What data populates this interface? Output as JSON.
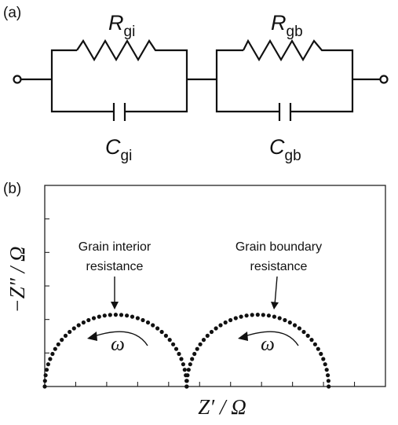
{
  "panel_a": {
    "label": "(a)",
    "r_gi": {
      "main": "R",
      "sub": "gi"
    },
    "r_gb": {
      "main": "R",
      "sub": "gb"
    },
    "c_gi": {
      "main": "C",
      "sub": "gi"
    },
    "c_gb": {
      "main": "C",
      "sub": "gb"
    }
  },
  "panel_b": {
    "label": "(b)",
    "ylabel": "−Z″ / Ω",
    "xlabel": "Z′ / Ω",
    "annotation_left": {
      "line1": "Grain interior",
      "line2": "resistance"
    },
    "annotation_right": {
      "line1": "Grain boundary",
      "line2": "resistance"
    },
    "omega": "ω"
  },
  "chart_data": {
    "type": "scatter",
    "title": "",
    "xlabel": "Z′ / Ω",
    "ylabel": "−Z″ / Ω",
    "xlim": [
      0,
      2.4
    ],
    "ylim": [
      0,
      1.4
    ],
    "series": [
      {
        "name": "",
        "center": 0.5,
        "radius": 0.5,
        "points": 40
      },
      {
        "name": "",
        "center": 1.5,
        "radius": 0.5,
        "points": 40
      }
    ],
    "grid": false,
    "markers": "filled circles"
  }
}
